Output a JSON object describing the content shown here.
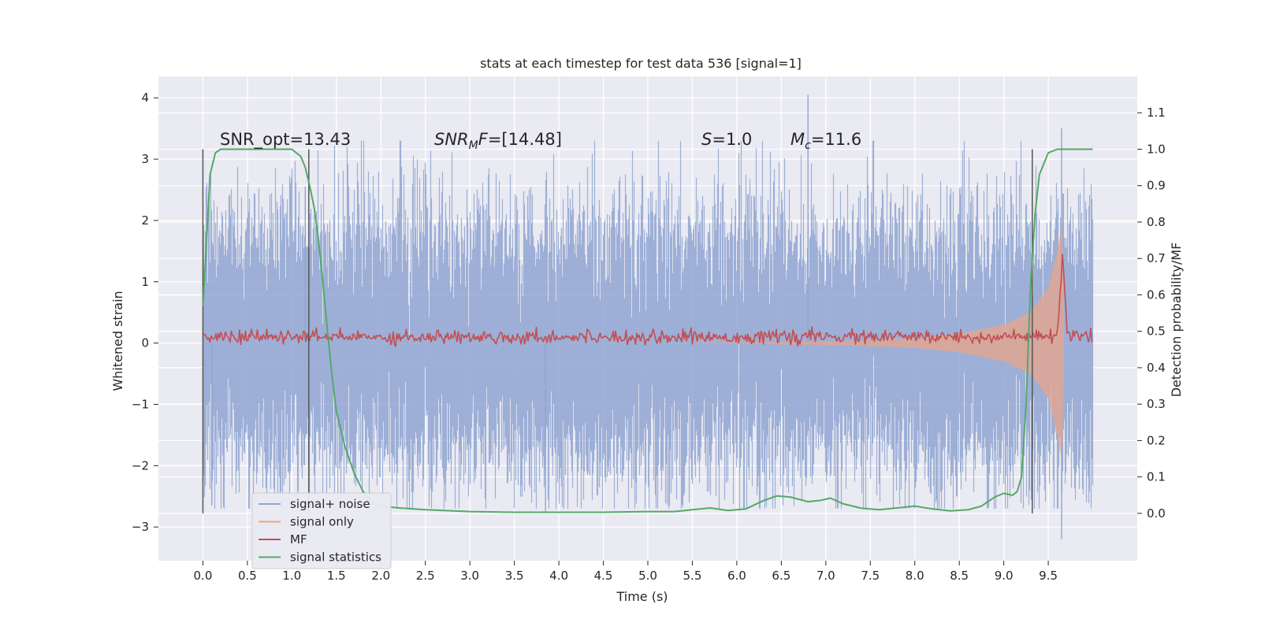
{
  "chart_data": {
    "type": "line",
    "title": "stats at each timestep for test data 536 [signal=1]",
    "xlabel": "Time (s)",
    "ylabel": "Whitened strain",
    "ylabel_right": "Detection probability/MF",
    "xlim": [
      -0.5,
      10.5
    ],
    "ylim": [
      -3.55,
      4.35
    ],
    "ylim_right": [
      -0.13,
      1.2
    ],
    "xticks": [
      0.0,
      0.5,
      1.0,
      1.5,
      2.0,
      2.5,
      3.0,
      3.5,
      4.0,
      4.5,
      5.0,
      5.5,
      6.0,
      6.5,
      7.0,
      7.5,
      8.0,
      8.5,
      9.0,
      9.5
    ],
    "xtick_labels": [
      "0.0",
      "0.5",
      "1.0",
      "1.5",
      "2.0",
      "2.5",
      "3.0",
      "3.5",
      "4.0",
      "4.5",
      "5.0",
      "5.5",
      "6.0",
      "6.5",
      "7.0",
      "7.5",
      "8.0",
      "8.5",
      "9.0",
      "9.5"
    ],
    "yticks": [
      -3,
      -2,
      -1,
      0,
      1,
      2,
      3,
      4
    ],
    "ytick_labels": [
      "−3",
      "−2",
      "−1",
      "0",
      "1",
      "2",
      "3",
      "4"
    ],
    "yticks_right": [
      0.0,
      0.1,
      0.2,
      0.3,
      0.4,
      0.5,
      0.6,
      0.7,
      0.8,
      0.9,
      1.0,
      1.1
    ],
    "ytick_right_labels": [
      "0.0",
      "0.1",
      "0.2",
      "0.3",
      "0.4",
      "0.5",
      "0.6",
      "0.7",
      "0.8",
      "0.9",
      "1.0",
      "1.1"
    ],
    "grid": true,
    "legend": {
      "position": "lower-left",
      "entries": [
        {
          "name": "signal+ noise",
          "color": "#8fa5d1"
        },
        {
          "name": "signal only",
          "color": "#e8a48a"
        },
        {
          "name": "MF",
          "color": "#c44e52"
        },
        {
          "name": "signal statistics",
          "color": "#55a868"
        }
      ]
    },
    "annotations": {
      "snr_opt": "SNR_opt=13.43",
      "snr_mf_sym": "SNR",
      "snr_mf_sub": "M",
      "snr_mf_f": "F",
      "snr_mf_val": "=[14.48]",
      "s_sym": "S",
      "s_val": "=1.0",
      "mc_sym": "M",
      "mc_sub": "c",
      "mc_val": "=11.6"
    },
    "noise_envelope": {
      "x_start": 0.0,
      "x_end": 10.0,
      "typical_range": [
        -2.0,
        2.0
      ],
      "extremes": [
        -3.2,
        4.05
      ]
    },
    "signal_only": {
      "color": "#e8a48a",
      "envelope": {
        "x": [
          5.5,
          6.0,
          6.5,
          7.0,
          7.5,
          8.0,
          8.5,
          9.0,
          9.3,
          9.5,
          9.6,
          9.65,
          9.68
        ],
        "amplitude": [
          0.005,
          0.01,
          0.02,
          0.03,
          0.05,
          0.08,
          0.15,
          0.3,
          0.5,
          0.9,
          1.5,
          1.9,
          0.5
        ]
      }
    },
    "series": [
      {
        "name": "signal statistics",
        "axis": "right",
        "color": "#55a868",
        "x": [
          0.0,
          0.04,
          0.08,
          0.14,
          0.2,
          0.3,
          0.5,
          0.7,
          0.9,
          1.0,
          1.05,
          1.1,
          1.15,
          1.2,
          1.25,
          1.3,
          1.35,
          1.4,
          1.45,
          1.5,
          1.6,
          1.7,
          1.8,
          1.9,
          2.0,
          2.2,
          2.5,
          3.0,
          3.5,
          4.0,
          4.5,
          5.0,
          5.3,
          5.5,
          5.7,
          5.9,
          6.1,
          6.3,
          6.45,
          6.6,
          6.8,
          6.95,
          7.05,
          7.2,
          7.4,
          7.6,
          7.8,
          8.0,
          8.2,
          8.4,
          8.6,
          8.75,
          8.9,
          9.0,
          9.1,
          9.15,
          9.2,
          9.25,
          9.3,
          9.35,
          9.4,
          9.5,
          9.6,
          9.7,
          9.8,
          10.0
        ],
        "y": [
          0.57,
          0.75,
          0.93,
          0.99,
          1.0,
          1.0,
          1.0,
          1.0,
          1.0,
          1.0,
          0.99,
          0.98,
          0.95,
          0.9,
          0.84,
          0.75,
          0.63,
          0.5,
          0.38,
          0.28,
          0.18,
          0.11,
          0.06,
          0.03,
          0.02,
          0.015,
          0.01,
          0.005,
          0.003,
          0.003,
          0.003,
          0.005,
          0.005,
          0.01,
          0.015,
          0.008,
          0.012,
          0.035,
          0.048,
          0.045,
          0.032,
          0.036,
          0.042,
          0.026,
          0.014,
          0.01,
          0.015,
          0.02,
          0.012,
          0.007,
          0.01,
          0.02,
          0.045,
          0.055,
          0.05,
          0.06,
          0.1,
          0.3,
          0.62,
          0.82,
          0.93,
          0.99,
          1.0,
          1.0,
          1.0,
          1.0
        ]
      },
      {
        "name": "MF",
        "axis": "left",
        "color": "#c44e52",
        "baseline": 0.1,
        "peak_x": 9.66,
        "peak_y": 1.4
      }
    ],
    "vertical_lines": [
      {
        "x": 0.0,
        "y_right": [
          0.0,
          1.0
        ]
      },
      {
        "x": 1.19,
        "y_right": [
          0.0,
          1.0
        ]
      },
      {
        "x": 9.32,
        "y_right": [
          0.0,
          1.0
        ]
      }
    ]
  }
}
